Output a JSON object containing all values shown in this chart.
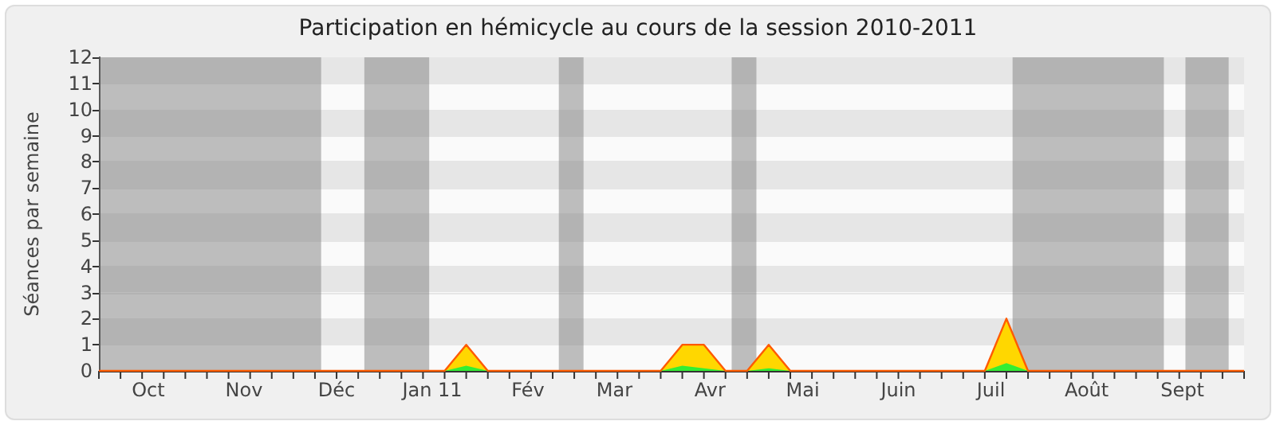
{
  "chart_data": {
    "type": "area",
    "title": "Participation en hémicycle au cours de la session 2010-2011",
    "ylabel": "Séances par semaine",
    "x": [
      "2010-09-15",
      "2010-09-22",
      "2010-09-29",
      "2010-10-06",
      "2010-10-13",
      "2010-10-20",
      "2010-10-27",
      "2010-11-03",
      "2010-11-10",
      "2010-11-17",
      "2010-11-24",
      "2010-12-01",
      "2010-12-08",
      "2010-12-15",
      "2010-12-22",
      "2010-12-29",
      "2011-01-05",
      "2011-01-12",
      "2011-01-19",
      "2011-01-26",
      "2011-02-02",
      "2011-02-09",
      "2011-02-16",
      "2011-02-23",
      "2011-03-02",
      "2011-03-09",
      "2011-03-16",
      "2011-03-23",
      "2011-03-30",
      "2011-04-06",
      "2011-04-13",
      "2011-04-20",
      "2011-04-27",
      "2011-05-04",
      "2011-05-11",
      "2011-05-18",
      "2011-05-25",
      "2011-06-01",
      "2011-06-08",
      "2011-06-15",
      "2011-06-22",
      "2011-06-29",
      "2011-07-06",
      "2011-07-13",
      "2011-07-20",
      "2011-07-27",
      "2011-08-03",
      "2011-08-10",
      "2011-08-17",
      "2011-08-24",
      "2011-08-31",
      "2011-09-07",
      "2011-09-14",
      "2011-09-21"
    ],
    "series": [
      {
        "color": "#ffd700",
        "values": [
          0,
          0,
          0,
          0,
          0,
          0,
          0,
          0,
          0,
          0,
          0,
          0,
          0,
          0,
          0,
          0,
          0,
          1,
          0,
          0,
          0,
          0,
          0,
          0,
          0,
          0,
          0,
          1,
          1,
          0,
          0,
          1,
          0,
          0,
          0,
          0,
          0,
          0,
          0,
          0,
          0,
          0,
          2,
          0,
          0,
          0,
          0,
          0,
          0,
          0,
          0,
          0,
          0,
          0
        ]
      },
      {
        "color": "#33ee33",
        "values": [
          0,
          0,
          0,
          0,
          0,
          0,
          0,
          0,
          0,
          0,
          0,
          0,
          0,
          0,
          0,
          0,
          0,
          0.2,
          0,
          0,
          0,
          0,
          0,
          0,
          0,
          0,
          0,
          0.2,
          0.1,
          0,
          0,
          0.1,
          0,
          0,
          0,
          0,
          0,
          0,
          0,
          0,
          0,
          0,
          0.3,
          0,
          0,
          0,
          0,
          0,
          0,
          0,
          0,
          0,
          0,
          0
        ]
      }
    ],
    "xlim": [
      "2010-09-15",
      "2011-09-21"
    ],
    "xticks": [
      {
        "value": "2010-09-15",
        "label": null
      },
      {
        "value": "2010-09-22",
        "label": null
      },
      {
        "value": "2010-09-29",
        "label": null
      },
      {
        "value": "2010-10-06",
        "label": null
      },
      {
        "value": "2010-10-13",
        "label": null
      },
      {
        "value": "2010-10-20",
        "label": null
      },
      {
        "value": "2010-10-27",
        "label": null
      },
      {
        "value": "2010-11-03",
        "label": null
      },
      {
        "value": "2010-11-10",
        "label": null
      },
      {
        "value": "2010-11-17",
        "label": null
      },
      {
        "value": "2010-11-24",
        "label": null
      },
      {
        "value": "2010-12-01",
        "label": null
      },
      {
        "value": "2010-12-08",
        "label": null
      },
      {
        "value": "2010-12-15",
        "label": null
      },
      {
        "value": "2010-12-22",
        "label": null
      },
      {
        "value": "2010-12-29",
        "label": null
      },
      {
        "value": "2011-01-05",
        "label": null
      },
      {
        "value": "2011-01-12",
        "label": null
      },
      {
        "value": "2011-01-19",
        "label": null
      },
      {
        "value": "2011-01-26",
        "label": null
      },
      {
        "value": "2011-02-02",
        "label": null
      },
      {
        "value": "2011-02-09",
        "label": null
      },
      {
        "value": "2011-02-16",
        "label": null
      },
      {
        "value": "2011-02-23",
        "label": null
      },
      {
        "value": "2011-03-02",
        "label": null
      },
      {
        "value": "2011-03-09",
        "label": null
      },
      {
        "value": "2011-03-16",
        "label": null
      },
      {
        "value": "2011-03-23",
        "label": null
      },
      {
        "value": "2011-03-30",
        "label": null
      },
      {
        "value": "2011-04-06",
        "label": null
      },
      {
        "value": "2011-04-13",
        "label": null
      },
      {
        "value": "2011-04-20",
        "label": null
      },
      {
        "value": "2011-04-27",
        "label": null
      },
      {
        "value": "2011-05-04",
        "label": null
      },
      {
        "value": "2011-05-11",
        "label": null
      },
      {
        "value": "2011-05-18",
        "label": null
      },
      {
        "value": "2011-05-25",
        "label": null
      },
      {
        "value": "2011-06-01",
        "label": null
      },
      {
        "value": "2011-06-08",
        "label": null
      },
      {
        "value": "2011-06-15",
        "label": null
      },
      {
        "value": "2011-06-22",
        "label": null
      },
      {
        "value": "2011-06-29",
        "label": null
      },
      {
        "value": "2011-07-06",
        "label": null
      },
      {
        "value": "2011-07-13",
        "label": null
      },
      {
        "value": "2011-07-20",
        "label": null
      },
      {
        "value": "2011-07-27",
        "label": null
      },
      {
        "value": "2011-08-03",
        "label": null
      },
      {
        "value": "2011-08-10",
        "label": null
      },
      {
        "value": "2011-08-17",
        "label": null
      },
      {
        "value": "2011-08-24",
        "label": null
      },
      {
        "value": "2011-08-31",
        "label": null
      },
      {
        "value": "2011-09-07",
        "label": null
      },
      {
        "value": "2011-09-14",
        "label": null
      },
      {
        "value": "2011-09-21",
        "label": null
      },
      {
        "value": "2010-10-01",
        "label": "Oct"
      },
      {
        "value": "2010-11-01",
        "label": "Nov"
      },
      {
        "value": "2010-12-01",
        "label": "Déc"
      },
      {
        "value": "2011-01-01",
        "label": "Jan 11"
      },
      {
        "value": "2011-02-01",
        "label": "Fév"
      },
      {
        "value": "2011-03-01",
        "label": "Mar"
      },
      {
        "value": "2011-04-01",
        "label": "Avr"
      },
      {
        "value": "2011-05-01",
        "label": "Mai"
      },
      {
        "value": "2011-06-01",
        "label": "Juin"
      },
      {
        "value": "2011-07-01",
        "label": "Juil"
      },
      {
        "value": "2011-08-01",
        "label": "Août"
      },
      {
        "value": "2011-09-01",
        "label": "Sept"
      }
    ],
    "ylim": [
      0,
      12
    ],
    "yticks": [
      0,
      1,
      2,
      3,
      4,
      5,
      6,
      7,
      8,
      9,
      10,
      11,
      12
    ],
    "grid": "y",
    "bands": [
      {
        "axis": "x",
        "from": "2010-09-15",
        "to": "2010-11-26",
        "color": "#808080"
      },
      {
        "axis": "x",
        "from": "2010-12-10",
        "to": "2010-12-31",
        "color": "#808080"
      },
      {
        "axis": "x",
        "from": "2011-02-11",
        "to": "2011-02-19",
        "color": "#808080"
      },
      {
        "axis": "x",
        "from": "2011-04-08",
        "to": "2011-04-16",
        "color": "#808080"
      },
      {
        "axis": "x",
        "from": "2011-07-08",
        "to": "2011-08-26",
        "color": "#808080"
      },
      {
        "axis": "x",
        "from": "2011-09-02",
        "to": "2011-09-16",
        "color": "#808080"
      }
    ]
  }
}
